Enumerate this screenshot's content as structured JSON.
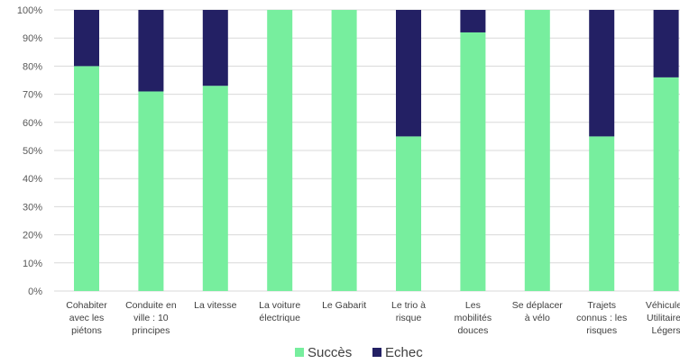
{
  "chart_data": {
    "type": "bar",
    "stacked": "percent",
    "categories": [
      [
        "Cohabiter",
        "avec les",
        "piétons"
      ],
      [
        "Conduite en",
        "ville : 10",
        "principes"
      ],
      [
        "La vitesse"
      ],
      [
        "La voiture",
        "électrique"
      ],
      [
        "Le Gabarit"
      ],
      [
        "Le trio à",
        "risque"
      ],
      [
        "Les",
        "mobilités",
        "douces"
      ],
      [
        "Se déplacer",
        "à vélo"
      ],
      [
        "Trajets",
        "connus : les",
        "risques"
      ],
      [
        "Véhicules",
        "Utilitaires",
        "Légers"
      ]
    ],
    "series": [
      {
        "name": "Succès",
        "color": "#77ee9e",
        "values": [
          80,
          71,
          73,
          100,
          100,
          55,
          92,
          100,
          55,
          76
        ]
      },
      {
        "name": "Echec",
        "color": "#232064",
        "values": [
          20,
          29,
          27,
          0,
          0,
          45,
          8,
          0,
          45,
          24
        ]
      }
    ],
    "yticks": [
      "0%",
      "10%",
      "20%",
      "30%",
      "40%",
      "50%",
      "60%",
      "70%",
      "80%",
      "90%",
      "100%"
    ],
    "ylim": [
      0,
      100
    ],
    "grid": true,
    "legend": "bottom"
  }
}
